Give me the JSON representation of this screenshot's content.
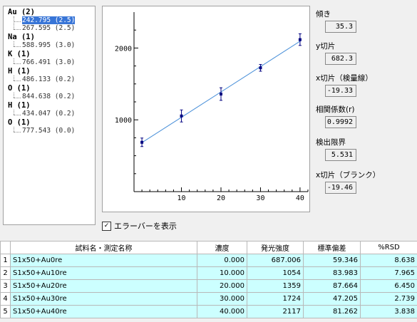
{
  "tree": {
    "groups": [
      {
        "element": "Au (2)",
        "lines": [
          {
            "text": "242.795 (2.5)",
            "selected": true
          },
          {
            "text": "267.595 (2.5)",
            "selected": false
          }
        ]
      },
      {
        "element": "Na (1)",
        "lines": [
          {
            "text": "588.995 (3.0)",
            "selected": false
          }
        ]
      },
      {
        "element": "K (1)",
        "lines": [
          {
            "text": "766.491 (3.0)",
            "selected": false
          }
        ]
      },
      {
        "element": "H (1)",
        "lines": [
          {
            "text": "486.133 (0.2)",
            "selected": false
          }
        ]
      },
      {
        "element": "O (1)",
        "lines": [
          {
            "text": "844.638 (0.2)",
            "selected": false
          }
        ]
      },
      {
        "element": "H (1)",
        "lines": [
          {
            "text": "434.047 (0.2)",
            "selected": false
          }
        ]
      },
      {
        "element": "O (1)",
        "lines": [
          {
            "text": "777.543 (0.0)",
            "selected": false
          }
        ]
      }
    ]
  },
  "stats": [
    {
      "label": "傾き",
      "value": "35.3"
    },
    {
      "label": "y切片",
      "value": "682.3"
    },
    {
      "label": "x切片（検量線）",
      "value": "-19.33"
    },
    {
      "label": "相関係数(r)",
      "value": "0.9992"
    },
    {
      "label": "検出限界",
      "value": "5.531"
    },
    {
      "label": "x切片（ブランク）",
      "value": "-19.46"
    }
  ],
  "checkbox": {
    "label": "エラーバーを表示",
    "checked": true,
    "mark": "✓"
  },
  "chart_data": {
    "type": "scatter",
    "x": [
      0,
      10,
      20,
      30,
      40
    ],
    "y": [
      687.006,
      1054,
      1359,
      1724,
      2117
    ],
    "error": [
      59.346,
      83.983,
      87.664,
      47.205,
      81.262
    ],
    "fit": {
      "slope": 35.3,
      "intercept": 682.3
    },
    "xlim": [
      -2,
      42
    ],
    "ylim": [
      0,
      2500
    ],
    "xticks": [
      10,
      20,
      30,
      40
    ],
    "yticks": [
      1000,
      2000
    ],
    "colors": {
      "points": "#000080",
      "fit": "#4a90d9"
    }
  },
  "table": {
    "headers": [
      "",
      "試料名・測定名称",
      "濃度",
      "発光強度",
      "標準偏差",
      "%RSD"
    ],
    "rows": [
      [
        "1",
        "S1x50+Au0re",
        "0.000",
        "687.006",
        "59.346",
        "8.638"
      ],
      [
        "2",
        "S1x50+Au10re",
        "10.000",
        "1054",
        "83.983",
        "7.965"
      ],
      [
        "3",
        "S1x50+Au20re",
        "20.000",
        "1359",
        "87.664",
        "6.450"
      ],
      [
        "4",
        "S1x50+Au30re",
        "30.000",
        "1724",
        "47.205",
        "2.739"
      ],
      [
        "5",
        "S1x50+Au40re",
        "40.000",
        "2117",
        "81.262",
        "3.838"
      ]
    ]
  }
}
